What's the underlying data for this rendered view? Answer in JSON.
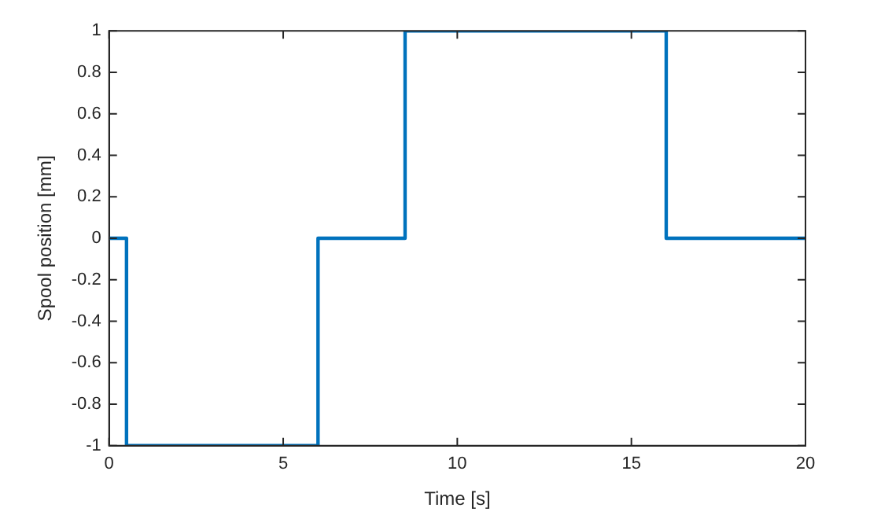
{
  "chart_data": {
    "type": "step",
    "xlabel": "Time [s]",
    "ylabel": "Spool position [mm]",
    "x": [
      0,
      0.5,
      6,
      8.5,
      16,
      20
    ],
    "series": [
      {
        "color": "#0072bd",
        "values": [
          0,
          -1,
          0,
          1,
          0,
          0
        ]
      }
    ],
    "xlim": [
      0,
      20
    ],
    "xticks": [
      0,
      5,
      10,
      15,
      20
    ],
    "ylim": [
      -1,
      1
    ],
    "yticks": [
      -1,
      -0.8,
      -0.6,
      -0.4,
      -0.2,
      0,
      0.2,
      0.4,
      0.6,
      0.8,
      1
    ],
    "grid": false,
    "legend": false
  }
}
